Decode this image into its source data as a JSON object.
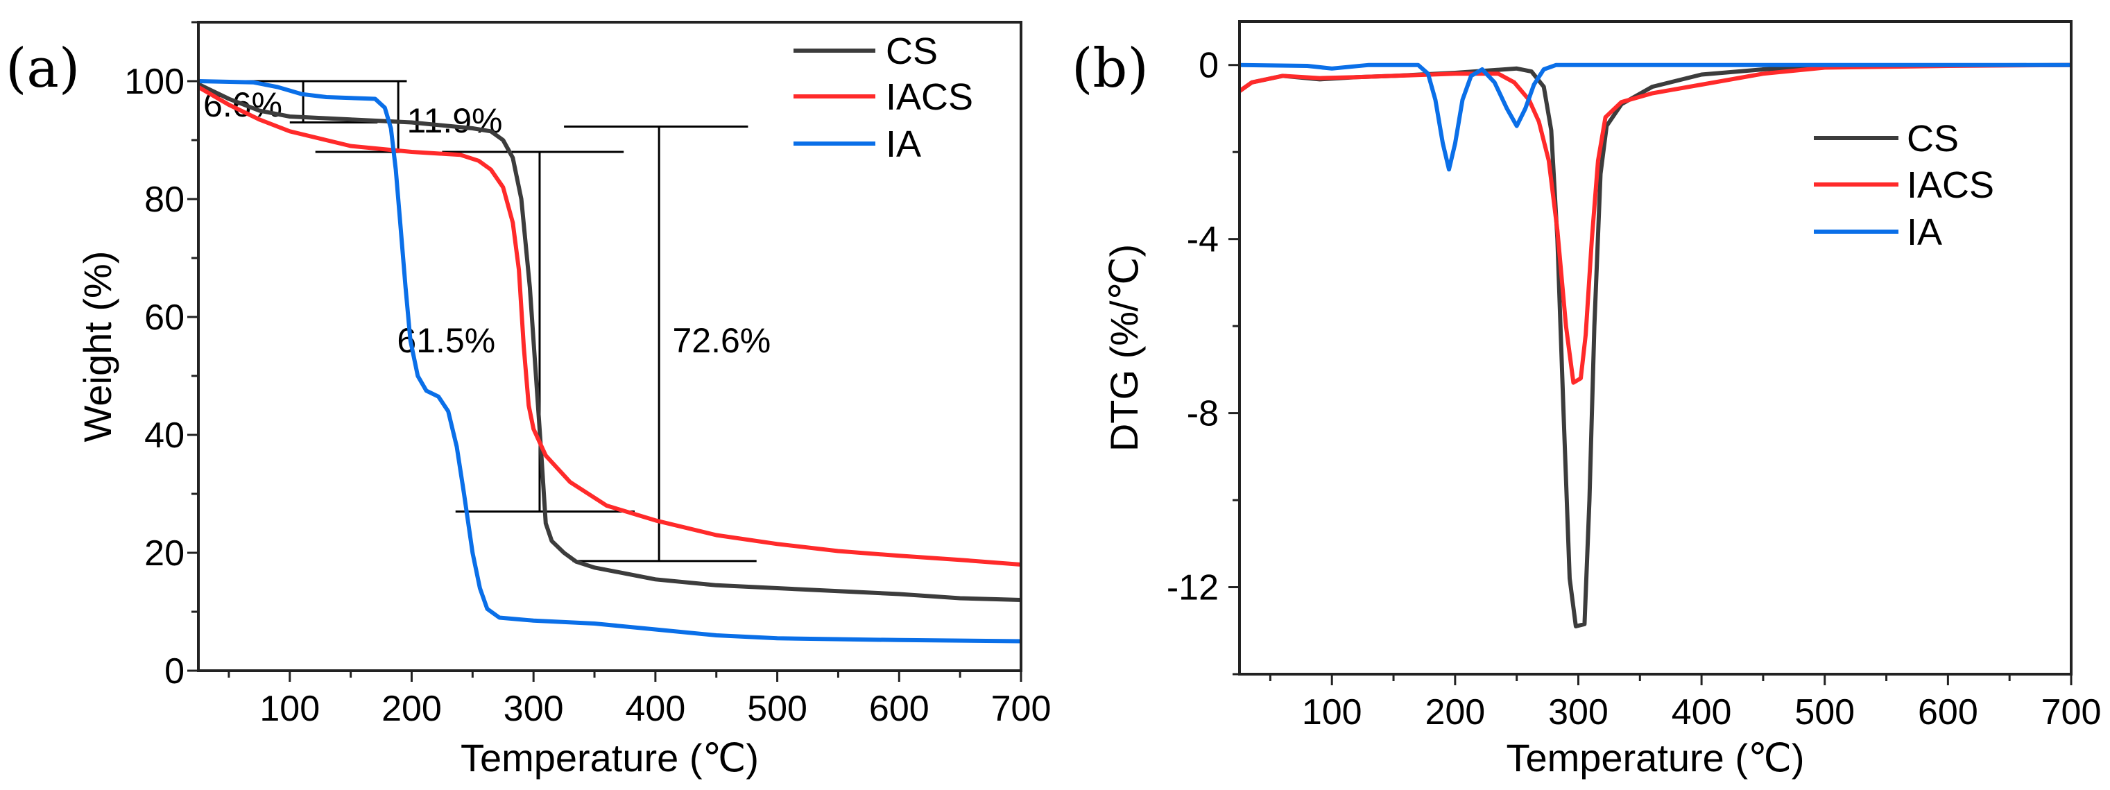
{
  "chart_data": [
    {
      "panel_label": "(a)",
      "type": "line",
      "xlabel": "Temperature (℃)",
      "ylabel": "Weight (%)",
      "xlim": [
        25,
        700
      ],
      "ylim": [
        0,
        110
      ],
      "xticks": [
        100,
        200,
        300,
        400,
        500,
        600,
        700
      ],
      "xtick_labels": [
        "100",
        "200",
        "300",
        "400",
        "500",
        "600",
        "700"
      ],
      "yticks": [
        0,
        20,
        40,
        60,
        80,
        100
      ],
      "ytick_labels": [
        "0",
        "20",
        "40",
        "60",
        "80",
        "100"
      ],
      "grid": false,
      "legend_position": "top-right",
      "series": [
        {
          "name": "CS",
          "color": "#3c3c3c",
          "points": [
            [
              25,
              99.5
            ],
            [
              50,
              97
            ],
            [
              75,
              95
            ],
            [
              100,
              94
            ],
            [
              150,
              93.5
            ],
            [
              200,
              93
            ],
            [
              250,
              92
            ],
            [
              265,
              91.5
            ],
            [
              275,
              90
            ],
            [
              283,
              87
            ],
            [
              290,
              80
            ],
            [
              297,
              65
            ],
            [
              302,
              50
            ],
            [
              306,
              38
            ],
            [
              310,
              25
            ],
            [
              315,
              22
            ],
            [
              325,
              20
            ],
            [
              335,
              18.5
            ],
            [
              350,
              17.5
            ],
            [
              400,
              15.5
            ],
            [
              450,
              14.5
            ],
            [
              500,
              14
            ],
            [
              550,
              13.5
            ],
            [
              600,
              13
            ],
            [
              650,
              12.3
            ],
            [
              700,
              12
            ]
          ]
        },
        {
          "name": "IACS",
          "color": "#ff2a2a",
          "points": [
            [
              25,
              99
            ],
            [
              50,
              96
            ],
            [
              75,
              93.5
            ],
            [
              100,
              91.5
            ],
            [
              150,
              89
            ],
            [
              200,
              88
            ],
            [
              240,
              87.5
            ],
            [
              255,
              86.5
            ],
            [
              265,
              85
            ],
            [
              275,
              82
            ],
            [
              283,
              76
            ],
            [
              288,
              68
            ],
            [
              292,
              55
            ],
            [
              296,
              45
            ],
            [
              300,
              41
            ],
            [
              310,
              36.5
            ],
            [
              330,
              32
            ],
            [
              360,
              28
            ],
            [
              400,
              25.5
            ],
            [
              450,
              23
            ],
            [
              500,
              21.5
            ],
            [
              550,
              20.3
            ],
            [
              600,
              19.5
            ],
            [
              650,
              18.8
            ],
            [
              700,
              18
            ]
          ]
        },
        {
          "name": "IA",
          "color": "#0a6fe8",
          "points": [
            [
              25,
              100
            ],
            [
              70,
              99.8
            ],
            [
              90,
              99
            ],
            [
              110,
              97.8
            ],
            [
              130,
              97.3
            ],
            [
              170,
              97
            ],
            [
              178,
              95.5
            ],
            [
              183,
              92
            ],
            [
              187,
              85
            ],
            [
              191,
              75
            ],
            [
              195,
              65
            ],
            [
              199,
              56
            ],
            [
              205,
              50
            ],
            [
              212,
              47.5
            ],
            [
              222,
              46.5
            ],
            [
              230,
              44
            ],
            [
              237,
              38
            ],
            [
              243,
              30
            ],
            [
              250,
              20
            ],
            [
              256,
              14
            ],
            [
              262,
              10.5
            ],
            [
              272,
              9
            ],
            [
              300,
              8.5
            ],
            [
              350,
              8
            ],
            [
              400,
              7
            ],
            [
              450,
              6
            ],
            [
              500,
              5.5
            ],
            [
              600,
              5.2
            ],
            [
              700,
              5
            ]
          ]
        }
      ],
      "annotations": {
        "brackets": [
          {
            "x1": 25,
            "x2": 196,
            "y": 100
          },
          {
            "x1": 100,
            "x2": 172,
            "y": 93
          },
          {
            "x1": 121,
            "x2": 193,
            "y": 88
          },
          {
            "x1": 225,
            "x2": 374,
            "y": 88
          },
          {
            "x1": 236,
            "x2": 383,
            "y": 27
          },
          {
            "x1": 325,
            "x2": 476,
            "y": 92.3
          },
          {
            "x1": 332,
            "x2": 483,
            "y": 18.6
          }
        ],
        "verticals": [
          {
            "x": 111,
            "y1": 93,
            "y2": 100
          },
          {
            "x": 189,
            "y1": 88,
            "y2": 100
          },
          {
            "x": 305,
            "y1": 27,
            "y2": 88
          },
          {
            "x": 403,
            "y1": 18.6,
            "y2": 92.3
          }
        ],
        "labels": [
          {
            "text": "6.6%",
            "x": 29,
            "y": 94
          },
          {
            "text": "11.9%",
            "x": 196,
            "y": 91.3
          },
          {
            "text": "61.5%",
            "x": 188,
            "y": 54
          },
          {
            "text": "72.6%",
            "x": 414,
            "y": 54
          }
        ]
      }
    },
    {
      "panel_label": "(b)",
      "type": "line",
      "xlabel": "Temperature (℃)",
      "ylabel": "DTG (%/℃)",
      "xlim": [
        25,
        700
      ],
      "ylim": [
        -14,
        1
      ],
      "xticks": [
        100,
        200,
        300,
        400,
        500,
        600,
        700
      ],
      "xtick_labels": [
        "100",
        "200",
        "300",
        "400",
        "500",
        "600",
        "700"
      ],
      "yticks": [
        0,
        -4,
        -8,
        -12
      ],
      "ytick_labels": [
        "0",
        "-4",
        "-8",
        "-12"
      ],
      "grid": false,
      "legend_position": "upper-right-center",
      "series": [
        {
          "name": "CS",
          "color": "#3c3c3c",
          "points": [
            [
              25,
              -0.6
            ],
            [
              35,
              -0.4
            ],
            [
              60,
              -0.25
            ],
            [
              90,
              -0.33
            ],
            [
              120,
              -0.28
            ],
            [
              150,
              -0.25
            ],
            [
              200,
              -0.18
            ],
            [
              250,
              -0.08
            ],
            [
              262,
              -0.15
            ],
            [
              272,
              -0.5
            ],
            [
              278,
              -1.5
            ],
            [
              283,
              -4
            ],
            [
              288,
              -8
            ],
            [
              293,
              -11.8
            ],
            [
              298,
              -12.9
            ],
            [
              305,
              -12.85
            ],
            [
              309,
              -10
            ],
            [
              313,
              -6
            ],
            [
              318,
              -2.5
            ],
            [
              323,
              -1.4
            ],
            [
              335,
              -0.9
            ],
            [
              360,
              -0.5
            ],
            [
              400,
              -0.22
            ],
            [
              450,
              -0.1
            ],
            [
              500,
              -0.02
            ],
            [
              700,
              0
            ]
          ]
        },
        {
          "name": "IACS",
          "color": "#ff2a2a",
          "points": [
            [
              25,
              -0.6
            ],
            [
              35,
              -0.4
            ],
            [
              60,
              -0.25
            ],
            [
              90,
              -0.3
            ],
            [
              120,
              -0.28
            ],
            [
              150,
              -0.25
            ],
            [
              200,
              -0.2
            ],
            [
              235,
              -0.2
            ],
            [
              248,
              -0.4
            ],
            [
              260,
              -0.8
            ],
            [
              268,
              -1.3
            ],
            [
              276,
              -2.2
            ],
            [
              283,
              -3.8
            ],
            [
              290,
              -6
            ],
            [
              296,
              -7.3
            ],
            [
              302,
              -7.2
            ],
            [
              306,
              -6.2
            ],
            [
              311,
              -4
            ],
            [
              316,
              -2.2
            ],
            [
              322,
              -1.2
            ],
            [
              335,
              -0.85
            ],
            [
              360,
              -0.65
            ],
            [
              400,
              -0.45
            ],
            [
              450,
              -0.2
            ],
            [
              500,
              -0.06
            ],
            [
              600,
              -0.02
            ],
            [
              700,
              0
            ]
          ]
        },
        {
          "name": "IA",
          "color": "#0a6fe8",
          "points": [
            [
              25,
              0
            ],
            [
              80,
              -0.02
            ],
            [
              100,
              -0.08
            ],
            [
              130,
              0
            ],
            [
              170,
              0
            ],
            [
              178,
              -0.2
            ],
            [
              184,
              -0.8
            ],
            [
              190,
              -1.8
            ],
            [
              195,
              -2.4
            ],
            [
              200,
              -1.8
            ],
            [
              206,
              -0.8
            ],
            [
              213,
              -0.25
            ],
            [
              222,
              -0.1
            ],
            [
              232,
              -0.4
            ],
            [
              242,
              -1.0
            ],
            [
              250,
              -1.4
            ],
            [
              257,
              -1.0
            ],
            [
              264,
              -0.45
            ],
            [
              272,
              -0.1
            ],
            [
              282,
              0
            ],
            [
              700,
              0
            ]
          ]
        }
      ]
    }
  ]
}
